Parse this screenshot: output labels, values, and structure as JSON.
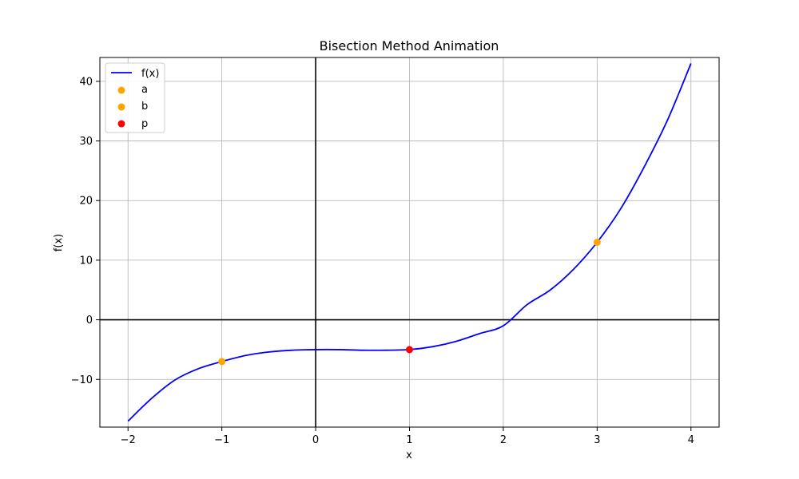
{
  "chart_data": {
    "type": "line",
    "title": "Bisection Method Animation",
    "xlabel": "x",
    "ylabel": "f(x)",
    "xlim": [
      -2.3,
      4.3
    ],
    "ylim": [
      -18,
      44
    ],
    "xticks": [
      -2,
      -1,
      0,
      1,
      2,
      3,
      4
    ],
    "xtick_labels": [
      "−2",
      "−1",
      "0",
      "1",
      "2",
      "3",
      "4"
    ],
    "yticks": [
      -10,
      0,
      10,
      20,
      30,
      40
    ],
    "ytick_labels": [
      "−10",
      "0",
      "10",
      "20",
      "30",
      "40"
    ],
    "grid": true,
    "legend_position": "upper-left",
    "curve": {
      "name": "f(x)",
      "color": "#0000ff",
      "x": [
        -2.0,
        -1.75,
        -1.5,
        -1.25,
        -1.0,
        -0.75,
        -0.5,
        -0.25,
        0.0,
        0.25,
        0.5,
        0.75,
        1.0,
        1.25,
        1.5,
        1.75,
        2.0,
        2.25,
        2.5,
        2.75,
        3.0,
        3.25,
        3.5,
        3.75,
        4.0
      ],
      "y": [
        -17,
        -13.2,
        -10.1,
        -8.2,
        -7,
        -6.0,
        -5.4,
        -5.1,
        -5,
        -5.0,
        -5.1,
        -5.1,
        -5,
        -4.5,
        -3.6,
        -2.3,
        -1,
        2.5,
        5.0,
        8.5,
        13,
        18.6,
        25.6,
        33.5,
        43
      ]
    },
    "points": [
      {
        "name": "a",
        "x": -1,
        "y": -7,
        "color": "#ffa500"
      },
      {
        "name": "b",
        "x": 3,
        "y": 13,
        "color": "#ffa500"
      },
      {
        "name": "p",
        "x": 1,
        "y": -5,
        "color": "#ff0000"
      }
    ],
    "reference_lines": {
      "x_zero": true,
      "y_zero": true,
      "color": "#000000"
    }
  }
}
